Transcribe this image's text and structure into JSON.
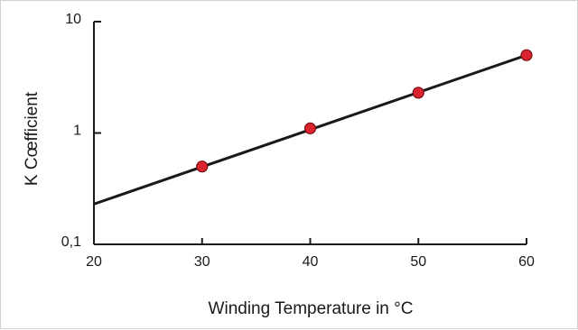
{
  "chart_data": {
    "type": "line",
    "xlabel": "Winding Temperature in °C",
    "ylabel": "K Cœfficient",
    "xlim": [
      20,
      60
    ],
    "ylim": [
      0.1,
      10
    ],
    "yscale": "log",
    "x_ticks": [
      20,
      30,
      40,
      50,
      60
    ],
    "x_tick_labels": [
      "20",
      "30",
      "40",
      "50",
      "60"
    ],
    "y_ticks": [
      0.1,
      1,
      10
    ],
    "y_tick_labels": [
      "0,1",
      "1",
      "10"
    ],
    "grid": false,
    "series": [
      {
        "line_x": [
          20,
          60
        ],
        "line_y": [
          0.23,
          5.0
        ],
        "points_x": [
          30,
          40,
          50,
          60
        ],
        "points_y": [
          0.5,
          1.1,
          2.3,
          5.0
        ]
      }
    ],
    "colors": {
      "line": "#1a1a1a",
      "marker_fill": "#d9232e",
      "marker_stroke": "#7a0f14",
      "axis": "#1a1a1a"
    }
  }
}
